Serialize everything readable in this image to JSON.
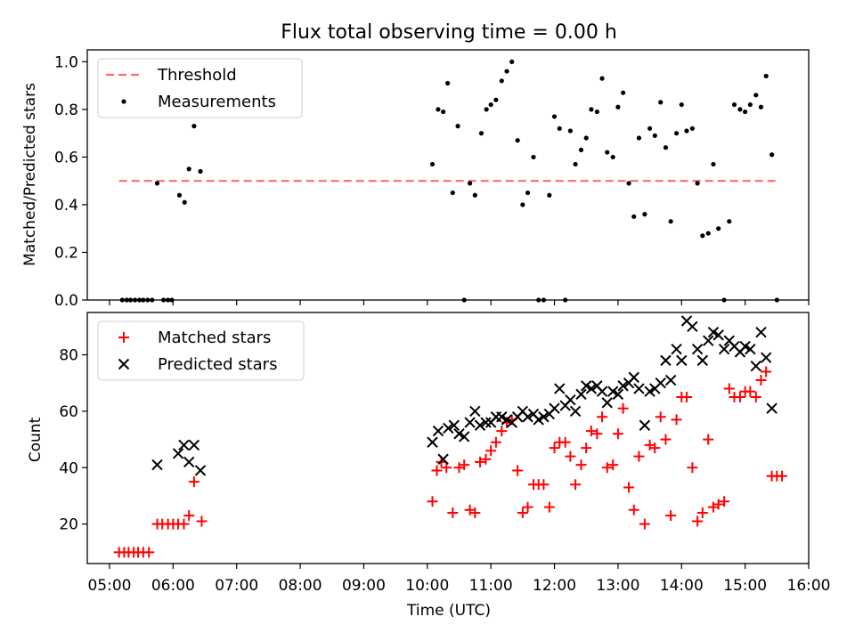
{
  "chart_data": [
    {
      "type": "scatter",
      "title": "Flux total observing time = 0.00 h",
      "ylabel": "Matched/Predicted stars",
      "xlabel": "",
      "xlim": [
        4.65,
        16.0
      ],
      "ylim": [
        0,
        1.05
      ],
      "yticks": [
        0.0,
        0.2,
        0.4,
        0.6,
        0.8,
        1.0
      ],
      "ytick_labels": [
        "0.0",
        "0.2",
        "0.4",
        "0.6",
        "0.8",
        "1.0"
      ],
      "legend": {
        "position": "top-left",
        "threshold_label": "Threshold",
        "measurements_label": "Measurements"
      },
      "threshold": {
        "value": 0.5,
        "x_start": 5.15,
        "x_end": 15.55,
        "color": "#ff6b6b"
      },
      "measurements": {
        "color": "#000000",
        "x": [
          5.2,
          5.27,
          5.33,
          5.4,
          5.47,
          5.53,
          5.6,
          5.67,
          5.75,
          5.85,
          5.92,
          5.98,
          6.1,
          6.18,
          6.25,
          6.33,
          6.43,
          10.08,
          10.17,
          10.25,
          10.32,
          10.4,
          10.48,
          10.58,
          10.67,
          10.75,
          10.85,
          10.93,
          11.0,
          11.08,
          11.17,
          11.25,
          11.33,
          11.42,
          11.5,
          11.58,
          11.67,
          11.75,
          11.83,
          11.92,
          12.0,
          12.08,
          12.17,
          12.25,
          12.33,
          12.42,
          12.5,
          12.58,
          12.67,
          12.75,
          12.83,
          12.92,
          13.0,
          13.08,
          13.17,
          13.25,
          13.33,
          13.42,
          13.5,
          13.58,
          13.67,
          13.75,
          13.83,
          13.92,
          14.0,
          14.08,
          14.17,
          14.25,
          14.33,
          14.42,
          14.5,
          14.58,
          14.67,
          14.75,
          14.83,
          14.92,
          15.0,
          15.08,
          15.17,
          15.25,
          15.33,
          15.42,
          15.5
        ],
        "y": [
          0,
          0,
          0,
          0,
          0,
          0,
          0,
          0,
          0.49,
          0,
          0,
          0,
          0.44,
          0.41,
          0.55,
          0.73,
          0.54,
          0.57,
          0.8,
          0.79,
          0.91,
          0.45,
          0.73,
          0,
          0.49,
          0.44,
          0.7,
          0.8,
          0.82,
          0.84,
          0.92,
          0.96,
          1.0,
          0.67,
          0.4,
          0.45,
          0.6,
          0,
          0,
          0.44,
          0.77,
          0.72,
          0,
          0.71,
          0.57,
          0.63,
          0.68,
          0.8,
          0.79,
          0.93,
          0.62,
          0.6,
          0.81,
          0.87,
          0.49,
          0.35,
          0.68,
          0.36,
          0.72,
          0.69,
          0.83,
          0.64,
          0.33,
          0.7,
          0.82,
          0.71,
          0.72,
          0.49,
          0.27,
          0.28,
          0.57,
          0.3,
          0,
          0.33,
          0.82,
          0.8,
          0.79,
          0.82,
          0.86,
          0.81,
          0.94,
          0.61,
          0
        ]
      }
    },
    {
      "type": "scatter",
      "title": "",
      "ylabel": "Count",
      "xlabel": "Time (UTC)",
      "xlim": [
        4.65,
        16.0
      ],
      "ylim": [
        6,
        95
      ],
      "yticks": [
        20,
        40,
        60,
        80
      ],
      "ytick_labels": [
        "20",
        "40",
        "60",
        "80"
      ],
      "xticks": [
        5,
        6,
        7,
        8,
        9,
        10,
        11,
        12,
        13,
        14,
        15,
        16
      ],
      "xtick_labels": [
        "05:00",
        "06:00",
        "07:00",
        "08:00",
        "09:00",
        "10:00",
        "11:00",
        "12:00",
        "13:00",
        "14:00",
        "15:00",
        "16:00"
      ],
      "legend": {
        "position": "top-left",
        "matched_label": "Matched stars",
        "predicted_label": "Predicted stars"
      },
      "matched": {
        "color": "#ff0000",
        "x": [
          5.15,
          5.23,
          5.3,
          5.38,
          5.45,
          5.53,
          5.62,
          5.75,
          5.83,
          5.92,
          6.0,
          6.08,
          6.17,
          6.25,
          6.33,
          6.45,
          10.08,
          10.15,
          10.22,
          10.3,
          10.4,
          10.5,
          10.58,
          10.67,
          10.75,
          10.83,
          10.92,
          11.0,
          11.08,
          11.17,
          11.25,
          11.33,
          11.42,
          11.5,
          11.58,
          11.67,
          11.75,
          11.83,
          11.92,
          12.0,
          12.08,
          12.17,
          12.25,
          12.33,
          12.42,
          12.5,
          12.58,
          12.67,
          12.75,
          12.83,
          12.92,
          13.0,
          13.08,
          13.17,
          13.25,
          13.33,
          13.42,
          13.5,
          13.58,
          13.67,
          13.75,
          13.83,
          13.92,
          14.0,
          14.08,
          14.17,
          14.25,
          14.33,
          14.42,
          14.5,
          14.58,
          14.67,
          14.75,
          14.83,
          14.92,
          15.0,
          15.08,
          15.17,
          15.25,
          15.33,
          15.42,
          15.5,
          15.58
        ],
        "y": [
          10,
          10,
          10,
          10,
          10,
          10,
          10,
          20,
          20,
          20,
          20,
          20,
          20,
          23,
          35,
          21,
          28,
          39,
          42,
          40,
          24,
          40,
          41,
          25,
          24,
          42,
          43,
          46,
          49,
          53,
          56,
          57,
          39,
          24,
          26,
          34,
          34,
          34,
          26,
          47,
          49,
          49,
          44,
          34,
          41,
          47,
          53,
          52,
          58,
          40,
          41,
          52,
          61,
          33,
          25,
          44,
          20,
          48,
          47,
          58,
          50,
          23,
          57,
          65,
          65,
          40,
          21,
          24,
          50,
          26,
          27,
          28,
          68,
          65,
          65,
          67,
          67,
          65,
          71,
          74,
          37,
          37,
          37
        ]
      },
      "predicted": {
        "color": "#000000",
        "x": [
          5.75,
          6.08,
          6.17,
          6.25,
          6.33,
          6.43,
          10.08,
          10.17,
          10.25,
          10.33,
          10.42,
          10.5,
          10.58,
          10.67,
          10.75,
          10.83,
          10.92,
          11.0,
          11.08,
          11.17,
          11.25,
          11.33,
          11.42,
          11.5,
          11.58,
          11.67,
          11.75,
          11.83,
          11.92,
          12.0,
          12.08,
          12.17,
          12.25,
          12.33,
          12.42,
          12.5,
          12.58,
          12.67,
          12.75,
          12.83,
          12.92,
          13.0,
          13.08,
          13.17,
          13.25,
          13.33,
          13.42,
          13.5,
          13.58,
          13.67,
          13.75,
          13.83,
          13.92,
          14.0,
          14.08,
          14.17,
          14.25,
          14.33,
          14.42,
          14.5,
          14.58,
          14.67,
          14.75,
          14.83,
          14.92,
          15.0,
          15.08,
          15.17,
          15.25,
          15.33,
          15.42
        ],
        "y": [
          41,
          45,
          48,
          42,
          48,
          39,
          49,
          53,
          43,
          54,
          55,
          52,
          51,
          56,
          60,
          55,
          56,
          56,
          58,
          58,
          57,
          56,
          58,
          60,
          58,
          59,
          57,
          58,
          59,
          61,
          68,
          62,
          64,
          60,
          66,
          69,
          68,
          69,
          67,
          63,
          67,
          66,
          69,
          70,
          72,
          68,
          55,
          67,
          68,
          70,
          78,
          71,
          82,
          78,
          92,
          90,
          82,
          78,
          85,
          88,
          87,
          82,
          85,
          83,
          81,
          83,
          82,
          76,
          88,
          79,
          61
        ]
      }
    }
  ]
}
